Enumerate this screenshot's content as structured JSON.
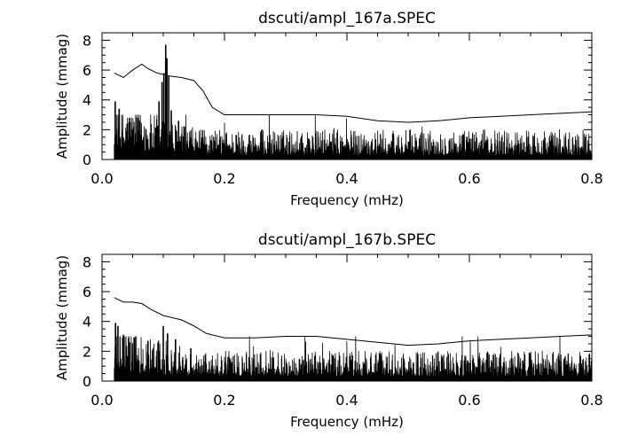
{
  "chart_data": [
    {
      "type": "line",
      "title": "dscuti/ampl_167a.SPEC",
      "xlabel": "Frequency (mHz)",
      "ylabel": "Amplitude (mmag)",
      "xlim": [
        0.0,
        0.8
      ],
      "ylim": [
        0,
        8.5
      ],
      "x_ticks": [
        "0.0",
        "0.2",
        "0.4",
        "0.6",
        "0.8"
      ],
      "y_ticks": [
        "0",
        "2",
        "4",
        "6",
        "8"
      ],
      "grid": false,
      "series": [
        {
          "role": "amplitude-spectrum",
          "color": "#000000",
          "x_range": [
            0.02,
            0.8
          ],
          "noise_level": 0.9,
          "peaks": [
            {
              "x": 0.0215,
              "y": 3.9
            },
            {
              "x": 0.028,
              "y": 3.4
            },
            {
              "x": 0.045,
              "y": 2.8
            },
            {
              "x": 0.061,
              "y": 2.6
            },
            {
              "x": 0.093,
              "y": 3.9
            },
            {
              "x": 0.098,
              "y": 5.2
            },
            {
              "x": 0.101,
              "y": 5.8
            },
            {
              "x": 0.104,
              "y": 7.7
            },
            {
              "x": 0.106,
              "y": 6.8
            },
            {
              "x": 0.109,
              "y": 5.6
            },
            {
              "x": 0.113,
              "y": 3.3
            },
            {
              "x": 0.125,
              "y": 2.6
            }
          ]
        },
        {
          "role": "significance-threshold",
          "color": "#000000",
          "x": [
            0.02,
            0.035,
            0.05,
            0.065,
            0.075,
            0.09,
            0.11,
            0.13,
            0.15,
            0.165,
            0.18,
            0.2,
            0.25,
            0.3,
            0.35,
            0.4,
            0.45,
            0.5,
            0.55,
            0.6,
            0.65,
            0.7,
            0.75,
            0.8
          ],
          "y": [
            5.8,
            5.5,
            6.0,
            6.4,
            6.1,
            5.8,
            5.6,
            5.5,
            5.3,
            4.6,
            3.5,
            3.0,
            3.0,
            3.0,
            3.0,
            2.9,
            2.6,
            2.5,
            2.6,
            2.8,
            2.9,
            3.0,
            3.1,
            3.2
          ]
        }
      ]
    },
    {
      "type": "line",
      "title": "dscuti/ampl_167b.SPEC",
      "xlabel": "Frequency (mHz)",
      "ylabel": "Amplitude (mmag)",
      "xlim": [
        0.0,
        0.8
      ],
      "ylim": [
        0,
        8.5
      ],
      "x_ticks": [
        "0.0",
        "0.2",
        "0.4",
        "0.6",
        "0.8"
      ],
      "y_ticks": [
        "0",
        "2",
        "4",
        "6",
        "8"
      ],
      "grid": false,
      "series": [
        {
          "role": "amplitude-spectrum",
          "color": "#000000",
          "x_range": [
            0.02,
            0.8
          ],
          "noise_level": 0.9,
          "peaks": [
            {
              "x": 0.022,
              "y": 3.9
            },
            {
              "x": 0.026,
              "y": 3.7
            },
            {
              "x": 0.035,
              "y": 3.1
            },
            {
              "x": 0.045,
              "y": 2.6
            },
            {
              "x": 0.075,
              "y": 2.7
            },
            {
              "x": 0.1,
              "y": 3.7
            },
            {
              "x": 0.107,
              "y": 3.2
            },
            {
              "x": 0.12,
              "y": 2.8
            },
            {
              "x": 0.145,
              "y": 2.2
            }
          ]
        },
        {
          "role": "significance-threshold",
          "color": "#000000",
          "x": [
            0.02,
            0.035,
            0.05,
            0.065,
            0.08,
            0.1,
            0.13,
            0.15,
            0.17,
            0.2,
            0.25,
            0.3,
            0.35,
            0.4,
            0.45,
            0.5,
            0.55,
            0.6,
            0.65,
            0.7,
            0.75,
            0.8
          ],
          "y": [
            5.6,
            5.3,
            5.3,
            5.2,
            4.8,
            4.4,
            4.1,
            3.7,
            3.2,
            2.9,
            2.9,
            3.0,
            3.0,
            2.8,
            2.6,
            2.4,
            2.5,
            2.7,
            2.8,
            2.9,
            3.0,
            3.1
          ]
        }
      ]
    }
  ]
}
